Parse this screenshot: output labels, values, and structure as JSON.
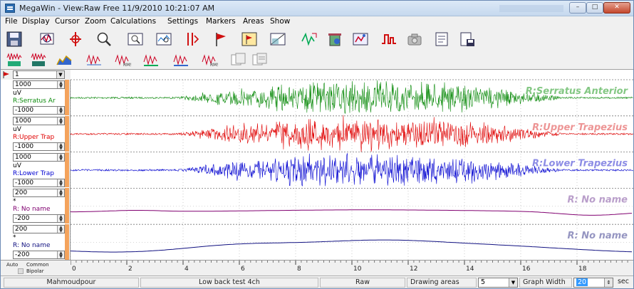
{
  "window": {
    "title": "MegaWin - View:Raw Free 11/9/2010 10:21:07 AM",
    "controls": {
      "minimize": "–",
      "maximize": "□",
      "close": "✕"
    }
  },
  "menu": [
    "File",
    "Display",
    "Cursor",
    "Zoom",
    "Calculations",
    "Settings",
    "Markers",
    "Areas",
    "Show"
  ],
  "toolbar1_icons": [
    "save-icon",
    "scope-icon",
    "cursor-ruler-icon",
    "zoom-icon",
    "zoom-box-icon",
    "zoom-fit-icon",
    "cursor-link-icon",
    "marker-flag-icon",
    "marker-box-icon",
    "area-select-icon",
    "wave-mark-icon",
    "trash-icon",
    "graph-axis-icon",
    "step-signal-icon",
    "camera-icon",
    "report-icon",
    "export-txt-icon"
  ],
  "toolbar2_icons": [
    "emg-filter-icon",
    "emg-filter2-icon",
    "area-fill-icon",
    "rms-icon",
    "rms2-icon",
    "rms3-icon",
    "rms4-icon",
    "copy-panel-icon",
    "copy-panel2-icon"
  ],
  "top_select": {
    "value": "1"
  },
  "channels": [
    {
      "max": "1000",
      "unit": "uV",
      "name": "R:Serratus Ar",
      "min": "-1000",
      "color": "#0a8a0a",
      "plot_label": "R:Serratus Anterior",
      "label_color": "#1e9a1e"
    },
    {
      "max": "1000",
      "unit": "uV",
      "name": "R:Upper Trap",
      "min": "-1000",
      "color": "#e00000",
      "plot_label": "R:Upper Trapezius",
      "label_color": "#e04040"
    },
    {
      "max": "1000",
      "unit": "uV",
      "name": "R:Lower Trap",
      "min": "-1000",
      "color": "#0000d0",
      "plot_label": "R:Lower Trapezius",
      "label_color": "#3030d0"
    },
    {
      "max": "200",
      "unit": "*",
      "name": "R: No name",
      "min": "-200",
      "color": "#800070",
      "plot_label": "R: No name",
      "label_color": "#8050a0"
    },
    {
      "max": "200",
      "unit": "*",
      "name": "R: No name",
      "min": "-200",
      "color": "#101080",
      "plot_label": "R: No name",
      "label_color": "#404090"
    }
  ],
  "axis": {
    "auto": "Auto",
    "common": "Common",
    "bipolar": "Bipolar",
    "ticks": [
      "0",
      "2",
      "4",
      "6",
      "8",
      "10",
      "12",
      "14",
      "16",
      "18"
    ]
  },
  "status": {
    "user": "Mahmoudpour",
    "test": "Low back test 4ch",
    "mode": "Raw",
    "drawing_areas_label": "Drawing areas",
    "drawing_areas_value": "5",
    "graph_width_label": "Graph Width",
    "graph_width_value": "20",
    "unit": "sec"
  },
  "colors": {
    "accent": "#f4a35c",
    "grid": "#9a9a9a",
    "plot_bg": "#ffffff"
  }
}
